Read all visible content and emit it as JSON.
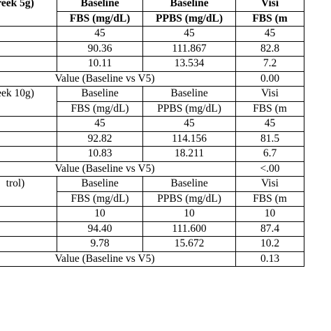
{
  "groups": [
    {
      "label": "reek 5g)",
      "bold": true,
      "header_row1": [
        "Baseline",
        "Baseline",
        "Visi"
      ],
      "header_row2": [
        "FBS (mg/dL)",
        "PPBS (mg/dL)",
        "FBS (m"
      ],
      "rows": [
        [
          "45",
          "45",
          "45"
        ],
        [
          "90.36",
          "111.867",
          "82.8"
        ],
        [
          "10.11",
          "13.534",
          "7.2"
        ]
      ],
      "p_label": "Value (Baseline vs V5)",
      "p_value": "0.00"
    },
    {
      "label": "eek 10g)",
      "bold": false,
      "header_row1": [
        "Baseline",
        "Baseline",
        "Visi"
      ],
      "header_row2": [
        "FBS (mg/dL)",
        "PPBS (mg/dL)",
        "FBS (m"
      ],
      "rows": [
        [
          "45",
          "45",
          "45"
        ],
        [
          "92.82",
          "114.156",
          "81.5"
        ],
        [
          "10.83",
          "18.211",
          "6.7"
        ]
      ],
      "p_label": "Value (Baseline vs V5)",
      "p_value": "<.00"
    },
    {
      "label": "trol)",
      "bold": false,
      "header_row1": [
        "Baseline",
        "Baseline",
        "Visi"
      ],
      "header_row2": [
        "FBS (mg/dL)",
        "PPBS (mg/dL)",
        "FBS (m"
      ],
      "rows": [
        [
          "10",
          "10",
          "10"
        ],
        [
          "94.40",
          "111.600",
          "87.4"
        ],
        [
          "9.78",
          "15.672",
          "10.2"
        ]
      ],
      "p_label": "Value (Baseline vs V5)",
      "p_value": "0.13"
    }
  ]
}
